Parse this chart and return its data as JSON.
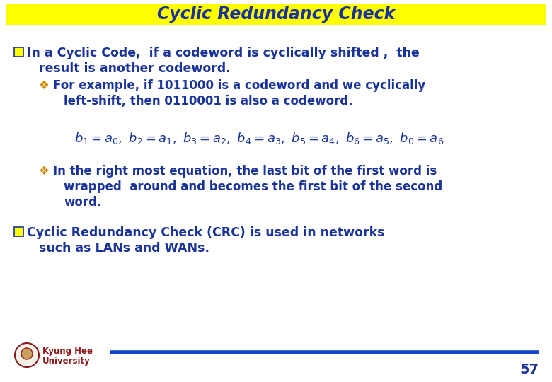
{
  "title": "Cyclic Redundancy Check",
  "title_bg": "#FFFF00",
  "title_color": "#1a3399",
  "bg_color": "#FFFFFF",
  "main_text_color": "#1a3399",
  "sub_bullet_color": "#CC8800",
  "bottom_line_color": "#1144CC",
  "page_number": "57",
  "university_text_color": "#8B1A1A",
  "bullet1_line1": "In a Cyclic Code,  if a codeword is cyclically shifted ,  the",
  "bullet1_line2": "result is another codeword.",
  "sub1_line1": "For example, if 1011000 is a codeword and we cyclically",
  "sub1_line2": "left-shift, then 0110001 is also a codeword.",
  "sub2_line1": "In the right most equation, the last bit of the first word is",
  "sub2_line2": "wrapped  around and becomes the first bit of the second",
  "sub2_line3": "word.",
  "bullet2_line1": "Cyclic Redundancy Check (CRC) is used in networks",
  "bullet2_line2": "such as LANs and WANs.",
  "univ_line1": "Kyung Hee",
  "univ_line2": "University"
}
